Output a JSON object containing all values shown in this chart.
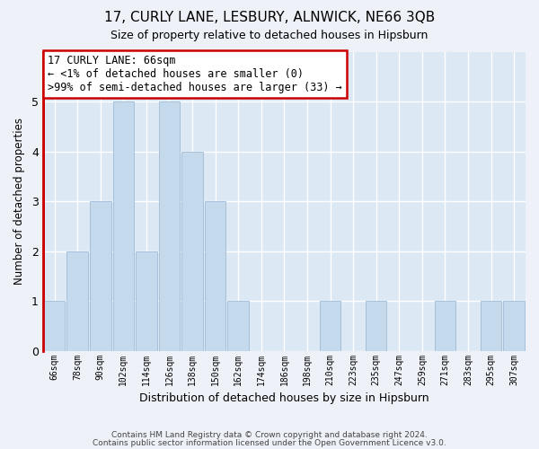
{
  "title": "17, CURLY LANE, LESBURY, ALNWICK, NE66 3QB",
  "subtitle": "Size of property relative to detached houses in Hipsburn",
  "xlabel": "Distribution of detached houses by size in Hipsburn",
  "ylabel": "Number of detached properties",
  "categories": [
    "66sqm",
    "78sqm",
    "90sqm",
    "102sqm",
    "114sqm",
    "126sqm",
    "138sqm",
    "150sqm",
    "162sqm",
    "174sqm",
    "186sqm",
    "198sqm",
    "210sqm",
    "223sqm",
    "235sqm",
    "247sqm",
    "259sqm",
    "271sqm",
    "283sqm",
    "295sqm",
    "307sqm"
  ],
  "values": [
    1,
    2,
    3,
    5,
    2,
    5,
    4,
    3,
    1,
    0,
    0,
    0,
    1,
    0,
    1,
    0,
    0,
    1,
    0,
    1,
    1
  ],
  "bar_color": "#c5d9ed",
  "highlight_index": 0,
  "highlight_color": "#cc0000",
  "ylim": [
    0,
    6
  ],
  "yticks": [
    0,
    1,
    2,
    3,
    4,
    5,
    6
  ],
  "annotation_title": "17 CURLY LANE: 66sqm",
  "annotation_line1": "← <1% of detached houses are smaller (0)",
  "annotation_line2": ">99% of semi-detached houses are larger (33) →",
  "footer1": "Contains HM Land Registry data © Crown copyright and database right 2024.",
  "footer2": "Contains public sector information licensed under the Open Government Licence v3.0.",
  "bg_color": "#eef2f8",
  "plot_bg_color": "#dce8f4",
  "grid_color": "#ffffff"
}
